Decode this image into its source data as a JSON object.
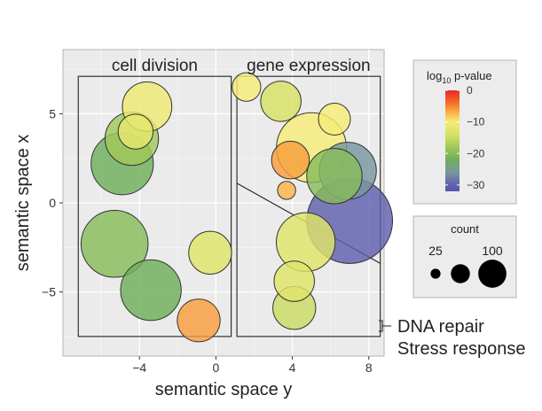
{
  "chart_data": {
    "type": "scatter",
    "xlabel": "semantic space y",
    "ylabel": "semantic space x",
    "xlim": [
      -8,
      8.8
    ],
    "ylim": [
      -8.6,
      8.6
    ],
    "x_ticks": [
      -4,
      0,
      4,
      8
    ],
    "y_ticks": [
      -5,
      0,
      5
    ],
    "x_tick_labels": [
      "−4",
      "0",
      "4",
      "8"
    ],
    "y_tick_labels": [
      "−5",
      "0",
      "5"
    ],
    "grid": true,
    "panel_background": "#ebebeb",
    "regions": [
      {
        "label": "cell division",
        "x_range": [
          -7.2,
          0.8
        ],
        "y_range": [
          -7.5,
          7.1
        ]
      },
      {
        "label": "gene expression",
        "x_range": [
          1.1,
          8.6
        ],
        "y_range": [
          -7.5,
          7.1
        ]
      }
    ],
    "divider_line": {
      "from": [
        1.1,
        1.1
      ],
      "to": [
        8.6,
        -3.4
      ]
    },
    "annotations": [
      "DNA repair",
      "Stress response"
    ],
    "color_legend": {
      "title_prefix": "log",
      "title_subscript": "10",
      "title_suffix": " p-value",
      "ticks": [
        0,
        -10,
        -20,
        -30
      ],
      "tick_labels": [
        "0",
        "−10",
        "−20",
        "−30"
      ],
      "min": -32,
      "max": 0
    },
    "size_legend": {
      "title": "count",
      "values": [
        25,
        50,
        100
      ],
      "labels": [
        "25",
        "",
        "100"
      ]
    },
    "points": [
      {
        "x": -3.6,
        "y": 5.4,
        "log10p": -11,
        "count": 60
      },
      {
        "x": -4.2,
        "y": 4.0,
        "log10p": -12,
        "count": 30
      },
      {
        "x": -4.4,
        "y": 3.6,
        "log10p": -18,
        "count": 70
      },
      {
        "x": -4.9,
        "y": 2.2,
        "log10p": -22,
        "count": 95
      },
      {
        "x": -5.3,
        "y": -2.3,
        "log10p": -20,
        "count": 110
      },
      {
        "x": -3.4,
        "y": -4.9,
        "log10p": -22,
        "count": 90
      },
      {
        "x": -0.3,
        "y": -2.8,
        "log10p": -13,
        "count": 45
      },
      {
        "x": -0.9,
        "y": -6.6,
        "log10p": -6,
        "count": 45
      },
      {
        "x": 1.6,
        "y": 6.5,
        "log10p": -10,
        "count": 20
      },
      {
        "x": 3.4,
        "y": 5.7,
        "log10p": -14,
        "count": 40
      },
      {
        "x": 6.2,
        "y": 4.7,
        "log10p": -10,
        "count": 25
      },
      {
        "x": 3.9,
        "y": 2.4,
        "log10p": -6,
        "count": 35
      },
      {
        "x": 5.0,
        "y": 3.1,
        "log10p": -10,
        "count": 120
      },
      {
        "x": 6.9,
        "y": 1.8,
        "log10p": -26,
        "count": 80
      },
      {
        "x": 6.2,
        "y": 1.5,
        "log10p": -20,
        "count": 75
      },
      {
        "x": 3.7,
        "y": 0.7,
        "log10p": -7,
        "count": 8
      },
      {
        "x": 7.0,
        "y": -1.0,
        "log10p": -30,
        "count": 180
      },
      {
        "x": 4.7,
        "y": -2.2,
        "log10p": -13,
        "count": 85
      },
      {
        "x": 4.1,
        "y": -4.4,
        "log10p": -13,
        "count": 40
      },
      {
        "x": 4.1,
        "y": -5.9,
        "log10p": -15,
        "count": 45
      }
    ]
  }
}
